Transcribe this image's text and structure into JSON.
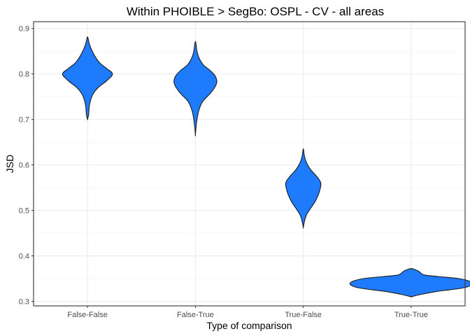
{
  "chart_data": {
    "type": "violin",
    "title": "Within PHOIBLE > SegBo: OSPL - CV - all areas",
    "xlabel": "Type of comparison",
    "ylabel": "JSD",
    "categories": [
      "False-False",
      "False-True",
      "True-False",
      "True-True"
    ],
    "ylim": [
      0.29,
      0.915
    ],
    "yticks": [
      "0.3",
      "0.4",
      "0.5",
      "0.6",
      "0.7",
      "0.8",
      "0.9"
    ],
    "grid": true,
    "fill_color": "#1e7bfc",
    "violins": [
      {
        "category": "False-False",
        "profile": [
          [
            0.7,
            0.0
          ],
          [
            0.71,
            0.04
          ],
          [
            0.73,
            0.07
          ],
          [
            0.745,
            0.13
          ],
          [
            0.757,
            0.22
          ],
          [
            0.77,
            0.4
          ],
          [
            0.785,
            0.72
          ],
          [
            0.8,
            0.94
          ],
          [
            0.812,
            0.72
          ],
          [
            0.825,
            0.45
          ],
          [
            0.84,
            0.27
          ],
          [
            0.855,
            0.14
          ],
          [
            0.868,
            0.06
          ],
          [
            0.882,
            0.0
          ]
        ]
      },
      {
        "category": "False-True",
        "profile": [
          [
            0.665,
            0.0
          ],
          [
            0.68,
            0.02
          ],
          [
            0.7,
            0.06
          ],
          [
            0.72,
            0.13
          ],
          [
            0.74,
            0.28
          ],
          [
            0.76,
            0.6
          ],
          [
            0.78,
            0.8
          ],
          [
            0.795,
            0.75
          ],
          [
            0.808,
            0.55
          ],
          [
            0.82,
            0.3
          ],
          [
            0.835,
            0.14
          ],
          [
            0.85,
            0.06
          ],
          [
            0.872,
            0.0
          ]
        ]
      },
      {
        "category": "True-False",
        "profile": [
          [
            0.462,
            0.0
          ],
          [
            0.475,
            0.04
          ],
          [
            0.49,
            0.12
          ],
          [
            0.505,
            0.28
          ],
          [
            0.52,
            0.45
          ],
          [
            0.54,
            0.6
          ],
          [
            0.56,
            0.66
          ],
          [
            0.575,
            0.5
          ],
          [
            0.59,
            0.27
          ],
          [
            0.605,
            0.12
          ],
          [
            0.62,
            0.04
          ],
          [
            0.636,
            0.0
          ]
        ]
      },
      {
        "category": "True-True",
        "profile": [
          [
            0.31,
            0.0
          ],
          [
            0.315,
            0.35
          ],
          [
            0.322,
            1.0
          ],
          [
            0.33,
            2.0
          ],
          [
            0.34,
            2.3
          ],
          [
            0.35,
            1.8
          ],
          [
            0.357,
            0.6
          ],
          [
            0.363,
            0.35
          ],
          [
            0.367,
            0.26
          ],
          [
            0.372,
            0.0
          ]
        ]
      }
    ]
  }
}
